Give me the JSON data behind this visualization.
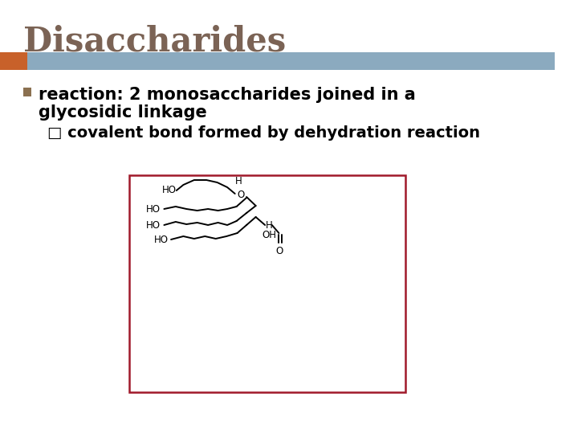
{
  "title": "Disaccharides",
  "title_color": "#7B6355",
  "title_fontsize": 30,
  "bar_color_orange": "#C8612A",
  "bar_color_blue": "#8BAABF",
  "bullet_text_line1": "reaction: 2 monosaccharides joined in a",
  "bullet_text_line2": "glycosidic linkage",
  "sub_bullet_text": "□ covalent bond formed by dehydration reaction",
  "bullet_fontsize": 15,
  "sub_bullet_fontsize": 14,
  "box_color": "#A0192A",
  "background_color": "#FFFFFF",
  "bullet_square_color": "#8B7050"
}
